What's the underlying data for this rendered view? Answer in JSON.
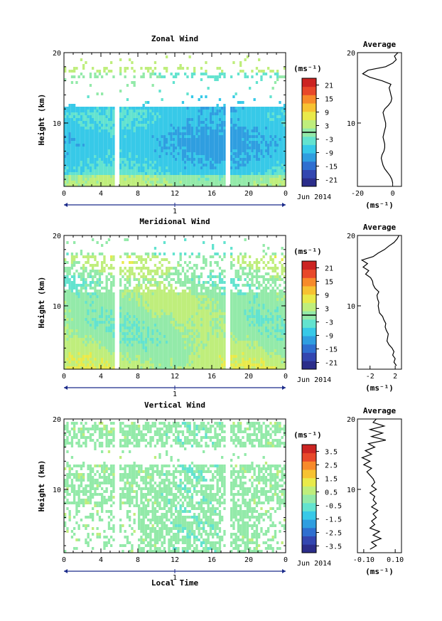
{
  "figure": {
    "local_time_label": "Local Time",
    "date_label": "Jun 2014",
    "day_label": "1",
    "average_title": "Average",
    "unit_label": "(ms⁻¹)"
  },
  "chart_data": [
    {
      "type": "heatmap",
      "title": "Zonal Wind",
      "xlabel": "",
      "ylabel": "Height (km)",
      "xlim": [
        0,
        24
      ],
      "ylim": [
        1,
        20
      ],
      "xticks": [
        "0",
        "4",
        "8",
        "12",
        "16",
        "20",
        "0"
      ],
      "yticks": [
        "10",
        "20"
      ],
      "colorbar": {
        "unit": "(ms⁻¹)",
        "range": [
          -24,
          24
        ],
        "ticks": [
          "21",
          "15",
          "9",
          "3",
          "-3",
          "-9",
          "-15",
          "-21"
        ],
        "zero_line": 0
      },
      "data_gaps_hours": [
        [
          5.6,
          6.1
        ],
        [
          17.4,
          17.9
        ]
      ],
      "profile": {
        "title": "Average",
        "xlabel": "(ms⁻¹)",
        "xlim": [
          -20,
          5
        ],
        "xticks": [
          "-20",
          "0"
        ],
        "heights": [
          1.5,
          2,
          2.5,
          3,
          3.5,
          4,
          4.5,
          5,
          5.5,
          6,
          6.5,
          7,
          7.5,
          8,
          8.5,
          9,
          9.5,
          10,
          10.5,
          11,
          11.5,
          12,
          12.5,
          13,
          13.5,
          14,
          14.5,
          15,
          15.5,
          16,
          16.5,
          17,
          17.5,
          18,
          18.5,
          19,
          19.5,
          20
        ],
        "values": [
          0,
          -0.5,
          -1.5,
          -3,
          -4.5,
          -5.5,
          -6,
          -6.5,
          -6,
          -5,
          -4.5,
          -4.5,
          -5,
          -5.5,
          -5,
          -4.5,
          -4,
          -4,
          -4.5,
          -5,
          -5.5,
          -4.5,
          -2.5,
          -1,
          -0.5,
          -1,
          -1.5,
          -2,
          -1,
          -6,
          -13,
          -17,
          -14,
          -4,
          0,
          2,
          1,
          3
        ]
      }
    },
    {
      "type": "heatmap",
      "title": "Meridional Wind",
      "xlabel": "",
      "ylabel": "Height (km)",
      "xlim": [
        0,
        24
      ],
      "ylim": [
        1,
        20
      ],
      "xticks": [
        "0",
        "4",
        "8",
        "12",
        "16",
        "20",
        "0"
      ],
      "yticks": [
        "10",
        "20"
      ],
      "colorbar": {
        "unit": "(ms⁻¹)",
        "range": [
          -24,
          24
        ],
        "ticks": [
          "21",
          "15",
          "9",
          "3",
          "-3",
          "-9",
          "-15",
          "-21"
        ],
        "zero_line": 0
      },
      "data_gaps_hours": [
        [
          5.6,
          6.1
        ],
        [
          17.4,
          17.9
        ]
      ],
      "profile": {
        "title": "Average",
        "xlabel": "(ms⁻¹)",
        "xlim": [
          -4,
          3
        ],
        "xticks": [
          "-2",
          "2"
        ],
        "heights": [
          1.5,
          2,
          2.5,
          3,
          3.5,
          4,
          4.5,
          5,
          5.5,
          6,
          6.5,
          7,
          7.5,
          8,
          8.5,
          9,
          9.5,
          10,
          10.5,
          11,
          11.5,
          12,
          12.5,
          13,
          13.5,
          14,
          14.5,
          15,
          15.5,
          16,
          16.5,
          17,
          17.5,
          18,
          18.5,
          19,
          19.5,
          20
        ],
        "values": [
          2.2,
          1.8,
          2,
          1.6,
          1.8,
          1.5,
          1,
          0.7,
          0.8,
          0.9,
          0.6,
          0.4,
          0.5,
          0.2,
          0,
          -0.5,
          -0.6,
          -0.7,
          -0.6,
          -0.8,
          -0.9,
          -0.6,
          -1.2,
          -1.5,
          -1.6,
          -1.9,
          -2.7,
          -2.2,
          -3.1,
          -2.4,
          -3.3,
          -1.5,
          -0.7,
          0.3,
          1,
          1.8,
          2.3,
          2.6
        ]
      }
    },
    {
      "type": "heatmap",
      "title": "Vertical Wind",
      "xlabel": "Local Time",
      "ylabel": "Height (km)",
      "xlim": [
        0,
        24
      ],
      "ylim": [
        1,
        20
      ],
      "xticks": [
        "0",
        "4",
        "8",
        "12",
        "16",
        "20",
        "0"
      ],
      "yticks": [
        "10",
        "20"
      ],
      "colorbar": {
        "unit": "(ms⁻¹)",
        "range": [
          -4,
          4
        ],
        "ticks": [
          "3.5",
          "2.5",
          "1.5",
          "0.5",
          "-0.5",
          "-1.5",
          "-2.5",
          "-3.5"
        ],
        "zero_line": null
      },
      "data_gaps_hours": [
        [
          5.6,
          6.1
        ],
        [
          17.4,
          17.9
        ]
      ],
      "profile": {
        "title": "Average",
        "xlabel": "(ms⁻¹)",
        "xlim": [
          -0.14,
          0.14
        ],
        "xticks": [
          "-0.10",
          "0.10"
        ],
        "heights": [
          1.5,
          2,
          2.5,
          3,
          3.5,
          4,
          4.5,
          5,
          5.5,
          6,
          6.5,
          7,
          7.5,
          8,
          8.5,
          9,
          9.5,
          10,
          10.5,
          11,
          11.5,
          12,
          12.5,
          13,
          13.5,
          14,
          14.5,
          15,
          15.5,
          16,
          16.5,
          17,
          17.5,
          18,
          18.5,
          19,
          19.5,
          20
        ],
        "values": [
          -0.06,
          -0.02,
          -0.05,
          0.01,
          -0.04,
          0,
          -0.06,
          -0.03,
          -0.05,
          -0.02,
          -0.04,
          -0.01,
          -0.05,
          -0.02,
          -0.04,
          -0.03,
          -0.06,
          -0.02,
          -0.05,
          -0.03,
          -0.04,
          -0.06,
          -0.08,
          -0.05,
          -0.1,
          -0.06,
          -0.11,
          -0.05,
          -0.09,
          -0.03,
          -0.07,
          0.04,
          -0.05,
          0.02,
          -0.06,
          0.03,
          -0.04,
          -0.02
        ]
      }
    }
  ]
}
